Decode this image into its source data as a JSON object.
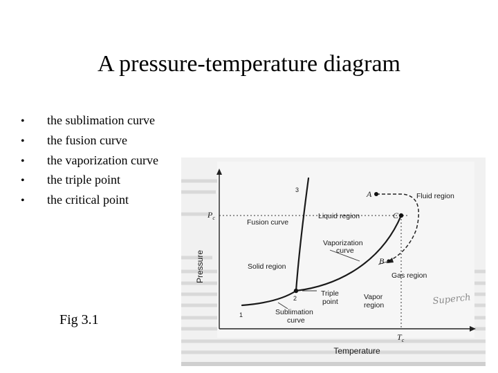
{
  "slide": {
    "title": "A pressure-temperature diagram",
    "bullets": [
      "the sublimation curve",
      "the fusion curve",
      "the vaporization curve",
      "the triple point",
      "the critical point"
    ],
    "figure_caption": "Fig 3.1"
  },
  "diagram": {
    "y_axis_label": "Pressure",
    "x_axis_label": "Temperature",
    "y_tick": "P",
    "y_tick_sub": "c",
    "x_tick": "T",
    "x_tick_sub": "c",
    "regions": {
      "liquid": "Liquid region",
      "solid": "Solid region",
      "vapor_line1": "Vapor",
      "vapor_line2": "region",
      "gas": "Gas region",
      "fluid": "Fluid region"
    },
    "curves": {
      "fusion": "Fusion curve",
      "vaporization_line1": "Vaporization",
      "vaporization_line2": "curve",
      "sublimation_line1": "Sublimation",
      "sublimation_line2": "curve"
    },
    "points": {
      "triple_line1": "Triple",
      "triple_line2": "point",
      "A": "A",
      "B": "B",
      "C": "C",
      "n1": "1",
      "n2": "2",
      "n3": "3"
    },
    "watermark": "Superch"
  }
}
